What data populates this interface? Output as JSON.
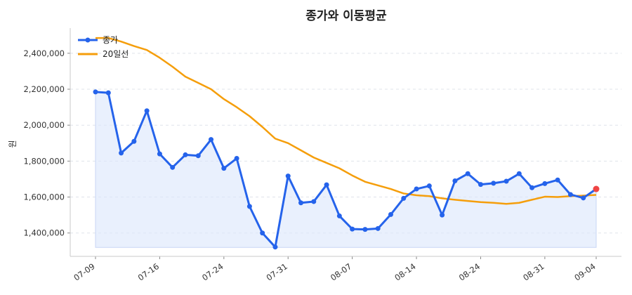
{
  "chart_data": {
    "type": "line",
    "title": "종가와 이동평균",
    "ylabel": "원",
    "xlabel": "",
    "ylim": [
      1270000,
      2540000
    ],
    "yticks": [
      1400000,
      1600000,
      1800000,
      2000000,
      2200000,
      2400000
    ],
    "ytick_labels": [
      "1,400,000",
      "1,600,000",
      "1,800,000",
      "2,000,000",
      "2,200,000",
      "2,400,000"
    ],
    "xtick_labels": [
      {
        "index": 0,
        "label": "07-09"
      },
      {
        "index": 5,
        "label": "07-16"
      },
      {
        "index": 10,
        "label": "07-24"
      },
      {
        "index": 15,
        "label": "07-31"
      },
      {
        "index": 20,
        "label": "08-07"
      },
      {
        "index": 25,
        "label": "08-14"
      },
      {
        "index": 30,
        "label": "08-24"
      },
      {
        "index": 35,
        "label": "08-31"
      },
      {
        "index": 39,
        "label": "09-04"
      }
    ],
    "grid": "horizontal-dashed",
    "legend_position": "top-left",
    "series": [
      {
        "name": "종가",
        "color": "#2563eb",
        "marker": "circle",
        "fill_under": true,
        "values": [
          2185000,
          2180000,
          1845000,
          1910000,
          2080000,
          1840000,
          1765000,
          1835000,
          1830000,
          1920000,
          1760000,
          1815000,
          1548000,
          1400000,
          1322000,
          1717000,
          1568000,
          1575000,
          1668000,
          1495000,
          1422000,
          1420000,
          1425000,
          1503000,
          1593000,
          1645000,
          1662000,
          1500000,
          1690000,
          1730000,
          1670000,
          1677000,
          1688000,
          1730000,
          1652000,
          1675000,
          1695000,
          1614000,
          1595000,
          1645000
        ]
      },
      {
        "name": "20일선",
        "color": "#f59e0b",
        "marker": "none",
        "values": [
          2485000,
          2485000,
          2465000,
          2440000,
          2418000,
          2375000,
          2325000,
          2270000,
          2235000,
          2200000,
          2145000,
          2100000,
          2050000,
          1990000,
          1925000,
          1900000,
          1860000,
          1820000,
          1790000,
          1760000,
          1720000,
          1685000,
          1665000,
          1645000,
          1620000,
          1610000,
          1605000,
          1593000,
          1585000,
          1578000,
          1572000,
          1568000,
          1562000,
          1568000,
          1585000,
          1602000,
          1600000,
          1605000,
          1608000,
          1612000
        ]
      }
    ],
    "highlight_last_point_color": "#ef4444"
  }
}
